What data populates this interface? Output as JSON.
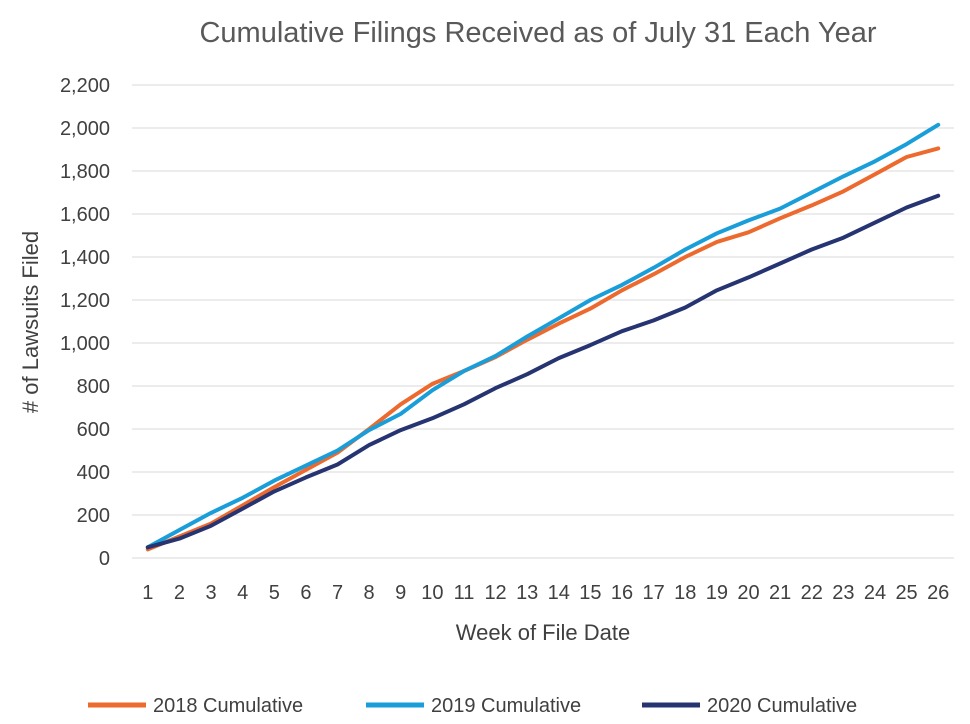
{
  "chart_data": {
    "type": "line",
    "title": "Cumulative Filings Received as of July 31 Each Year",
    "xlabel": "Week of File Date",
    "ylabel": "# of Lawsuits Filed",
    "ylim": [
      0,
      2200
    ],
    "ytick_step": 200,
    "ytick_labels": [
      "0",
      "200",
      "400",
      "600",
      "800",
      "1,000",
      "1,200",
      "1,400",
      "1,600",
      "1,800",
      "2,000",
      "2,200"
    ],
    "categories": [
      "1",
      "2",
      "3",
      "4",
      "5",
      "6",
      "7",
      "8",
      "9",
      "10",
      "11",
      "12",
      "13",
      "14",
      "15",
      "16",
      "17",
      "18",
      "19",
      "20",
      "21",
      "22",
      "23",
      "24",
      "25",
      "26"
    ],
    "grid": true,
    "legend_position": "bottom",
    "series": [
      {
        "name": "2018 Cumulative",
        "color": "#ED6A2E",
        "values": [
          40,
          100,
          160,
          245,
          330,
          410,
          490,
          600,
          715,
          810,
          870,
          935,
          1015,
          1090,
          1160,
          1245,
          1320,
          1400,
          1470,
          1515,
          1580,
          1640,
          1705,
          1785,
          1865,
          1905
        ]
      },
      {
        "name": "2019 Cumulative",
        "color": "#1A9ED9",
        "values": [
          50,
          130,
          210,
          280,
          360,
          430,
          500,
          595,
          670,
          780,
          870,
          940,
          1030,
          1115,
          1200,
          1270,
          1350,
          1435,
          1510,
          1570,
          1625,
          1700,
          1775,
          1845,
          1925,
          2015
        ]
      },
      {
        "name": "2020 Cumulative",
        "color": "#263472",
        "values": [
          50,
          90,
          150,
          230,
          310,
          375,
          435,
          525,
          595,
          650,
          715,
          790,
          855,
          930,
          990,
          1055,
          1105,
          1165,
          1245,
          1305,
          1370,
          1435,
          1490,
          1560,
          1630,
          1685
        ]
      }
    ]
  }
}
